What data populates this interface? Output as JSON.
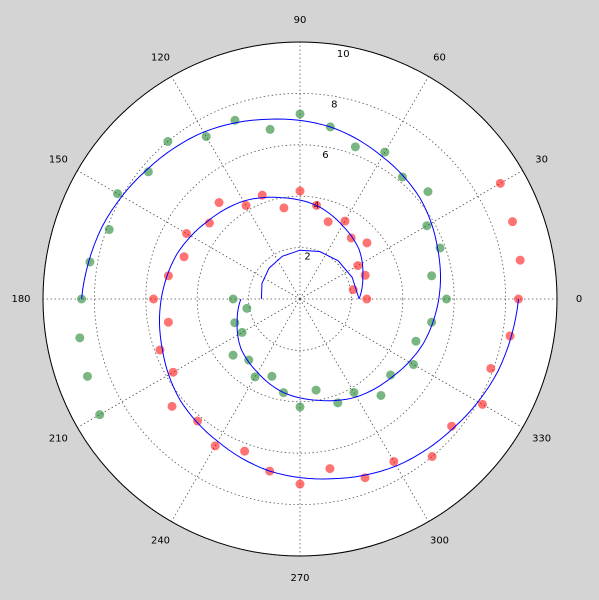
{
  "chart_data": {
    "type": "polar",
    "rlim": [
      0,
      10
    ],
    "rticks": [
      2,
      4,
      6,
      8,
      10
    ],
    "thetaticks": [
      0,
      30,
      60,
      90,
      120,
      150,
      180,
      210,
      240,
      270,
      300,
      330
    ],
    "grid": true,
    "series": [
      {
        "type": "scatter",
        "color": "#ff0000",
        "theta": [
          0,
          10,
          20,
          30,
          40,
          50,
          60,
          70,
          80,
          90,
          100,
          110,
          120,
          130,
          140,
          150,
          160,
          170,
          180,
          190,
          200,
          210,
          220,
          230,
          240,
          250,
          260,
          270,
          280,
          290,
          300,
          310,
          320,
          330,
          340,
          350,
          0,
          10,
          20,
          30
        ],
        "r": [
          2.6,
          2.1,
          2.7,
          2.6,
          3.4,
          3.1,
          3.5,
          3.2,
          3.7,
          4.2,
          3.6,
          4.3,
          4.2,
          4.9,
          4.6,
          5.1,
          4.8,
          5.2,
          5.7,
          5.2,
          5.8,
          5.7,
          6.5,
          6.2,
          6.6,
          6.3,
          6.8,
          7.2,
          6.7,
          7.4,
          7.3,
          8.0,
          7.7,
          8.2,
          7.9,
          8.3,
          8.5,
          8.7,
          8.8,
          9.0
        ]
      },
      {
        "type": "scatter",
        "color": "#0b7a1c",
        "theta": [
          180,
          190,
          200,
          210,
          220,
          230,
          240,
          250,
          260,
          270,
          280,
          290,
          300,
          310,
          320,
          330,
          340,
          350,
          0,
          10,
          20,
          30,
          40,
          50,
          60,
          70,
          80,
          90,
          100,
          110,
          120,
          130,
          140,
          150,
          160,
          170,
          180,
          190,
          200,
          210
        ],
        "r": [
          2.6,
          2.1,
          2.7,
          2.6,
          3.4,
          3.1,
          3.5,
          3.2,
          3.7,
          4.2,
          3.6,
          4.3,
          4.2,
          4.9,
          4.6,
          5.1,
          4.8,
          5.2,
          5.7,
          5.2,
          5.8,
          5.7,
          6.5,
          6.2,
          6.6,
          6.3,
          6.8,
          7.2,
          6.7,
          7.4,
          7.3,
          8.0,
          7.7,
          8.2,
          7.9,
          8.3,
          8.5,
          8.7,
          8.8,
          9.0
        ]
      },
      {
        "type": "line",
        "color": "#0000ff",
        "theta": [
          180,
          0
        ],
        "r": [
          1.5,
          2.3
        ]
      },
      {
        "type": "line",
        "color": "#0000ff",
        "theta": [
          0,
          20,
          40,
          60,
          80,
          100,
          120,
          140,
          160,
          180,
          200,
          220,
          240,
          260,
          280,
          300,
          320,
          340,
          360
        ],
        "r": [
          2.3,
          2.6,
          3.0,
          3.3,
          3.7,
          4.0,
          4.4,
          4.7,
          5.1,
          5.4,
          5.7,
          6.1,
          6.4,
          6.8,
          7.1,
          7.5,
          7.8,
          8.2,
          8.5
        ]
      },
      {
        "type": "line",
        "color": "#0000ff",
        "theta": [
          180,
          200,
          220,
          240,
          260,
          280,
          300,
          320,
          340,
          360,
          380,
          400,
          420,
          440,
          460,
          480,
          500,
          520,
          540
        ],
        "r": [
          2.3,
          2.6,
          3.0,
          3.3,
          3.7,
          4.0,
          4.4,
          4.7,
          5.1,
          5.4,
          5.7,
          6.1,
          6.4,
          6.8,
          7.1,
          7.5,
          7.8,
          8.2,
          8.5
        ]
      }
    ]
  }
}
